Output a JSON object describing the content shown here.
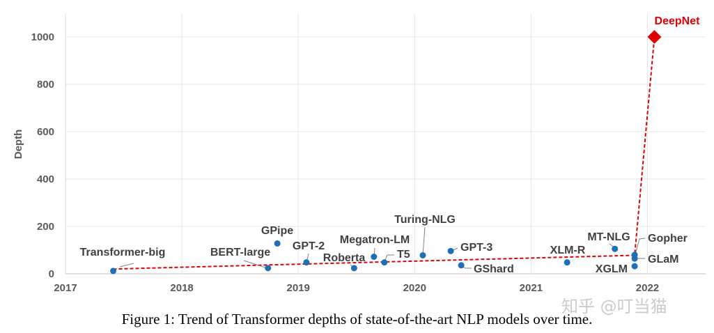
{
  "chart_data": {
    "type": "scatter",
    "title": "",
    "xlabel": "",
    "ylabel": "Depth",
    "xlim": [
      2017,
      2022.5
    ],
    "ylim": [
      0,
      1100
    ],
    "x_ticks": [
      "2017",
      "2018",
      "2019",
      "2020",
      "2021",
      "2022"
    ],
    "y_ticks": [
      "0",
      "200",
      "400",
      "600",
      "800",
      "1000"
    ],
    "grid": true,
    "points": [
      {
        "name": "Transformer-big",
        "x": 2017.41,
        "y": 12
      },
      {
        "name": "BERT-large",
        "x": 2018.74,
        "y": 24
      },
      {
        "name": "GPipe",
        "x": 2018.82,
        "y": 128
      },
      {
        "name": "GPT-2",
        "x": 2019.07,
        "y": 48
      },
      {
        "name": "Roberta",
        "x": 2019.48,
        "y": 24
      },
      {
        "name": "Megatron-LM",
        "x": 2019.65,
        "y": 72
      },
      {
        "name": "T5",
        "x": 2019.74,
        "y": 48
      },
      {
        "name": "Turing-NLG",
        "x": 2020.07,
        "y": 78
      },
      {
        "name": "GPT-3",
        "x": 2020.31,
        "y": 96
      },
      {
        "name": "GShard",
        "x": 2020.4,
        "y": 36
      },
      {
        "name": "XLM-R",
        "x": 2021.31,
        "y": 48
      },
      {
        "name": "MT-NLG",
        "x": 2021.72,
        "y": 105
      },
      {
        "name": "Gopher",
        "x": 2021.89,
        "y": 80
      },
      {
        "name": "GLaM",
        "x": 2021.89,
        "y": 64
      },
      {
        "name": "XGLM",
        "x": 2021.89,
        "y": 32
      },
      {
        "name": "DeepNet",
        "x": 2022.06,
        "y": 1000,
        "highlight": true
      }
    ],
    "trend_line": [
      [
        2017.41,
        20
      ],
      [
        2021.89,
        78
      ],
      [
        2022.06,
        1000
      ]
    ],
    "colors": {
      "points": "#1f6fb5",
      "deepnet": "#e00000",
      "trend": "#e00000",
      "grid": "#e6e6e6"
    }
  },
  "caption": "Figure 1: Trend of Transformer depths of state-of-the-art NLP models over time.",
  "watermark": "知乎 @叮当猫"
}
